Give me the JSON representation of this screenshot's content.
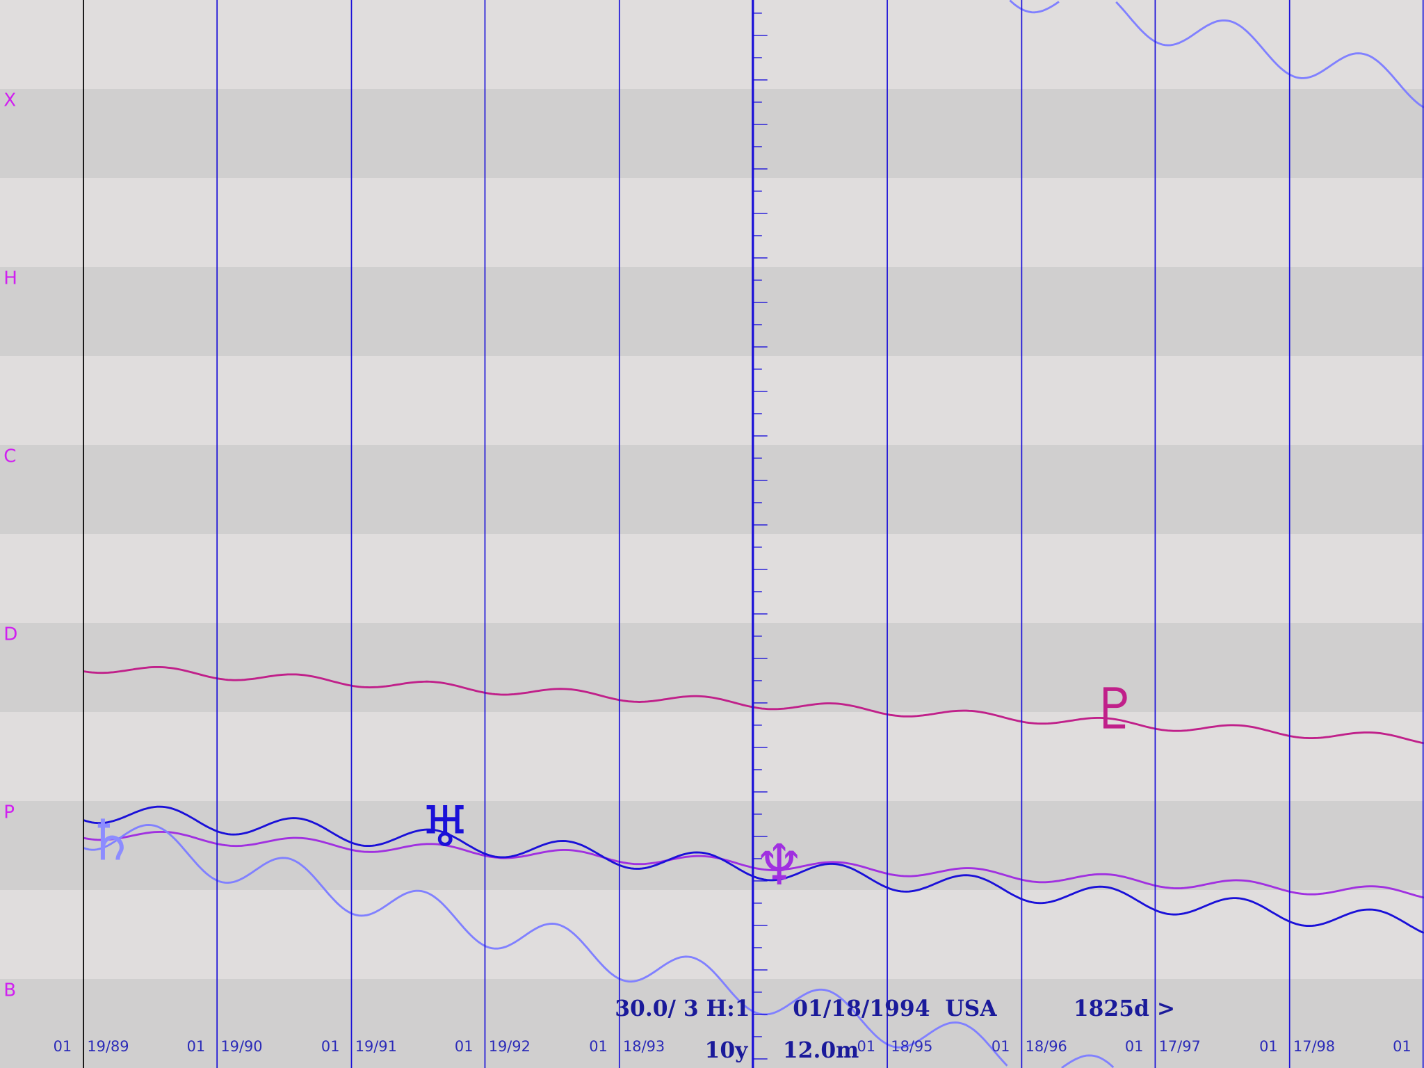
{
  "row_labels": [
    "X",
    "H",
    "C",
    "D",
    "P",
    "B"
  ],
  "date_labels": [
    {
      "day": "01",
      "date": "19/89"
    },
    {
      "day": "01",
      "date": "19/90"
    },
    {
      "day": "01",
      "date": "19/91"
    },
    {
      "day": "01",
      "date": "19/92"
    },
    {
      "day": "01",
      "date": "18/93"
    },
    {
      "day": "01",
      "date": "18/95"
    },
    {
      "day": "01",
      "date": "18/96"
    },
    {
      "day": "01",
      "date": "17/97"
    },
    {
      "day": "01",
      "date": "17/98"
    },
    {
      "day": "01"
    }
  ],
  "status": {
    "line1": [
      "30.0/ 3 H:1",
      "01/18/1994  USA",
      "1825d >"
    ],
    "line2": [
      "10y",
      "12.0m"
    ]
  },
  "glyphs": [
    "♄",
    "♅",
    "♆",
    "♇"
  ]
}
